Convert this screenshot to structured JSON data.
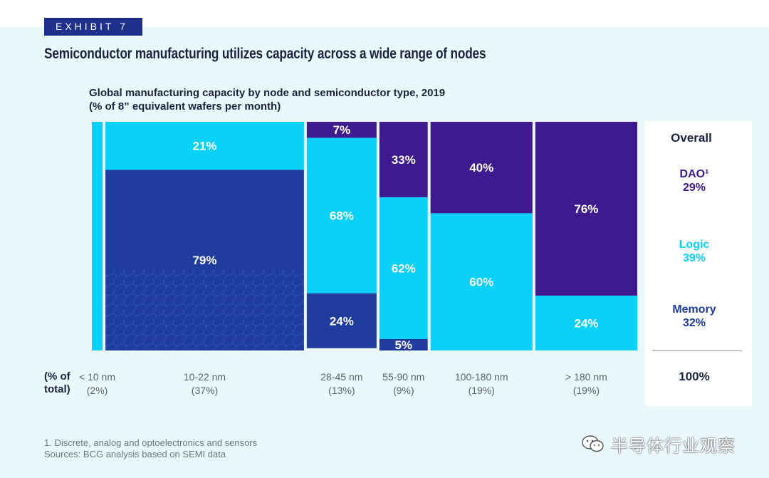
{
  "header": {
    "exhibit": "EXHIBIT 7",
    "title": "Semiconductor manufacturing utilizes capacity across a wide range of nodes",
    "subtitle_line1": "Global manufacturing capacity by node and semiconductor type, 2019",
    "subtitle_line2": "(% of 8” equivalent wafers per month)"
  },
  "pct_total_label_line1": "(% of",
  "pct_total_label_line2": "total)",
  "colors": {
    "dao": "#3e1a8e",
    "logic": "#0ad1f7",
    "memory": "#1f3c9e",
    "text_dark": "#1c2340",
    "panel_bg": "#eaf8fc"
  },
  "chart_data": {
    "type": "marimekko",
    "title": "Global manufacturing capacity by node and semiconductor type, 2019",
    "subtitle": "(% of 8” equivalent wafers per month)",
    "stack_order_top_to_bottom": [
      "DAO",
      "Logic",
      "Memory"
    ],
    "columns": [
      {
        "node": "< 10 nm",
        "share_label": "(2%)",
        "share": 2,
        "segments": {
          "DAO": 0,
          "Logic": 100,
          "Memory": 0
        },
        "labels": {}
      },
      {
        "node": "10-22 nm",
        "share_label": "(37%)",
        "share": 37,
        "segments": {
          "DAO": 0,
          "Logic": 21,
          "Memory": 79
        },
        "labels": {
          "Logic": "21%",
          "Memory": "79%"
        }
      },
      {
        "node": "28-45 nm",
        "share_label": "(13%)",
        "share": 13,
        "segments": {
          "DAO": 7,
          "Logic": 68,
          "Memory": 24
        },
        "labels": {
          "DAO": "7%",
          "Logic": "68%",
          "Memory": "24%"
        }
      },
      {
        "node": "55-90 nm",
        "share_label": "(9%)",
        "share": 9,
        "segments": {
          "DAO": 33,
          "Logic": 62,
          "Memory": 5
        },
        "labels": {
          "DAO": "33%",
          "Logic": "62%",
          "Memory": "5%"
        }
      },
      {
        "node": "100-180 nm",
        "share_label": "(19%)",
        "share": 19,
        "segments": {
          "DAO": 40,
          "Logic": 60,
          "Memory": 0
        },
        "labels": {
          "DAO": "40%",
          "Logic": "60%"
        }
      },
      {
        "node": "> 180 nm",
        "share_label": "(19%)",
        "share": 19,
        "segments": {
          "DAO": 76,
          "Logic": 24,
          "Memory": 0
        },
        "labels": {
          "DAO": "76%",
          "Logic": "24%"
        }
      }
    ],
    "overall": {
      "title": "Overall",
      "items": [
        {
          "name": "DAO¹",
          "value_label": "29%",
          "value": 29
        },
        {
          "name": "Logic",
          "value_label": "39%",
          "value": 39
        },
        {
          "name": "Memory",
          "value_label": "32%",
          "value": 32
        }
      ],
      "total_label": "100%"
    }
  },
  "footnote_line1": "1. Discrete, analog and optoelectronics and sensors",
  "footnote_line2": "Sources: BCG analysis based on SEMI data",
  "watermark": "半导体行业观察"
}
